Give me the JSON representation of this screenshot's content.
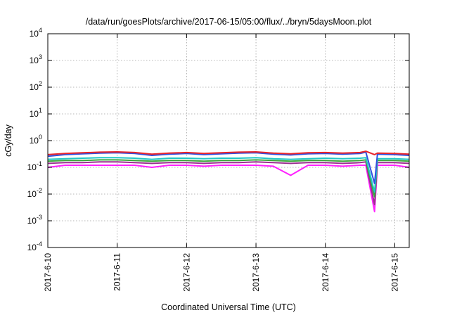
{
  "chart_data": {
    "type": "line",
    "title": "/data/run/goesPlots/archive/2017-06-15/05:00/flux/../bryn/5daysMoon.plot",
    "xlabel": "Coordinated Universal Time (UTC)",
    "ylabel": "cGy/day",
    "yscale": "log",
    "ylim": [
      0.0001,
      10000
    ],
    "xlim": [
      "2017-06-10 00:00",
      "2017-06-15 05:00"
    ],
    "grid": true,
    "legend": "none",
    "x_ticks": [
      {
        "label": "2017-6-10",
        "day": 0
      },
      {
        "label": "2017-6-11",
        "day": 1
      },
      {
        "label": "2017-6-12",
        "day": 2
      },
      {
        "label": "2017-6-13",
        "day": 3
      },
      {
        "label": "2017-6-14",
        "day": 4
      },
      {
        "label": "2017-6-15",
        "day": 5
      }
    ],
    "y_ticks": [
      {
        "base": "10",
        "exp": "-4",
        "value": 0.0001
      },
      {
        "base": "10",
        "exp": "-3",
        "value": 0.001
      },
      {
        "base": "10",
        "exp": "-2",
        "value": 0.01
      },
      {
        "base": "10",
        "exp": "-1",
        "value": 0.1
      },
      {
        "base": "10",
        "exp": "0",
        "value": 1
      },
      {
        "base": "10",
        "exp": "1",
        "value": 10
      },
      {
        "base": "10",
        "exp": "2",
        "value": 100
      },
      {
        "base": "10",
        "exp": "3",
        "value": 1000
      },
      {
        "base": "10",
        "exp": "4",
        "value": 10000
      }
    ],
    "x": [
      "2017-06-10 00:00",
      "2017-06-10 06:00",
      "2017-06-10 12:00",
      "2017-06-10 18:00",
      "2017-06-11 00:00",
      "2017-06-11 06:00",
      "2017-06-11 12:00",
      "2017-06-11 18:00",
      "2017-06-12 00:00",
      "2017-06-12 06:00",
      "2017-06-12 12:00",
      "2017-06-12 18:00",
      "2017-06-13 00:00",
      "2017-06-13 06:00",
      "2017-06-13 12:00",
      "2017-06-13 18:00",
      "2017-06-14 00:00",
      "2017-06-14 06:00",
      "2017-06-14 12:00",
      "2017-06-14 14:00",
      "2017-06-14 17:00",
      "2017-06-14 18:00",
      "2017-06-15 00:00",
      "2017-06-15 05:00"
    ],
    "series": [
      {
        "color": "#e8252b",
        "values": [
          0.3,
          0.33,
          0.35,
          0.37,
          0.38,
          0.36,
          0.31,
          0.34,
          0.36,
          0.33,
          0.35,
          0.37,
          0.38,
          0.34,
          0.32,
          0.35,
          0.36,
          0.34,
          0.36,
          0.4,
          0.3,
          0.34,
          0.33,
          0.31
        ]
      },
      {
        "color": "#3050e0",
        "values": [
          0.26,
          0.3,
          0.32,
          0.34,
          0.35,
          0.33,
          0.28,
          0.31,
          0.33,
          0.3,
          0.32,
          0.34,
          0.35,
          0.31,
          0.29,
          0.32,
          0.33,
          0.31,
          0.33,
          0.37,
          0.025,
          0.31,
          0.3,
          0.28
        ]
      },
      {
        "color": "#22c7c7",
        "values": [
          0.2,
          0.21,
          0.22,
          0.23,
          0.23,
          0.22,
          0.2,
          0.22,
          0.22,
          0.21,
          0.22,
          0.22,
          0.23,
          0.21,
          0.2,
          0.21,
          0.22,
          0.21,
          0.22,
          0.23,
          0.012,
          0.21,
          0.21,
          0.2
        ]
      },
      {
        "color": "#3aa83a",
        "values": [
          0.17,
          0.18,
          0.18,
          0.19,
          0.19,
          0.18,
          0.17,
          0.18,
          0.18,
          0.17,
          0.18,
          0.18,
          0.19,
          0.18,
          0.17,
          0.18,
          0.18,
          0.17,
          0.18,
          0.19,
          0.008,
          0.18,
          0.18,
          0.17
        ]
      },
      {
        "color": "#9b2f8f",
        "values": [
          0.14,
          0.15,
          0.15,
          0.16,
          0.16,
          0.15,
          0.14,
          0.15,
          0.15,
          0.14,
          0.15,
          0.15,
          0.16,
          0.15,
          0.14,
          0.15,
          0.15,
          0.14,
          0.15,
          0.16,
          0.004,
          0.15,
          0.15,
          0.14
        ]
      },
      {
        "color": "#ff20ff",
        "values": [
          0.1,
          0.12,
          0.12,
          0.12,
          0.12,
          0.12,
          0.1,
          0.12,
          0.12,
          0.11,
          0.12,
          0.12,
          0.12,
          0.11,
          0.05,
          0.12,
          0.12,
          0.11,
          0.12,
          0.12,
          0.0022,
          0.12,
          0.12,
          0.1
        ]
      }
    ]
  }
}
